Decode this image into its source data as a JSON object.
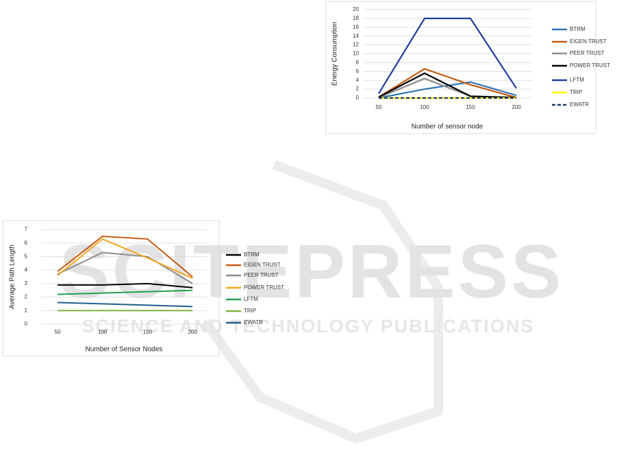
{
  "watermark": {
    "title": "SCITEPRESS",
    "subtitle": "SCIENCE AND TECHNOLOGY PUBLICATIONS"
  },
  "chart_data": [
    {
      "type": "line",
      "x_label": "Number of sensor node",
      "y_label": "Energy Consumption",
      "categories": [
        "50",
        "100",
        "150",
        "200"
      ],
      "ylim": [
        0,
        20
      ],
      "yticks": [
        0,
        2,
        4,
        6,
        8,
        10,
        12,
        14,
        16,
        18,
        20
      ],
      "grid": true,
      "legend": "right",
      "series": [
        {
          "name": "BTRM",
          "color": "#2e75b6",
          "values": [
            0,
            2,
            3.6,
            0.6
          ]
        },
        {
          "name": "EIGEN TRUST",
          "color": "#c55a11",
          "values": [
            0.2,
            6.6,
            3,
            0.1
          ]
        },
        {
          "name": "PEER TRUST",
          "color": "#8c8c8c",
          "values": [
            0.1,
            4.4,
            0.4,
            0.1
          ]
        },
        {
          "name": "POWER TRUST",
          "color": "#000000",
          "values": [
            0.2,
            5.6,
            0.4,
            0.1
          ]
        },
        {
          "name": "LFTM",
          "color": "#1f3d99",
          "values": [
            1,
            18,
            18,
            2.2
          ]
        },
        {
          "name": "TRIP",
          "color": "#ffff00",
          "values": [
            0,
            0,
            0,
            0
          ]
        },
        {
          "name": "EWATR",
          "color": "#1f3864",
          "style": "dashed",
          "values": [
            0,
            0,
            0,
            0
          ]
        }
      ]
    },
    {
      "type": "line",
      "x_label": "Number of Sensor Nodes",
      "y_label": "Average Path Length",
      "categories": [
        "50",
        "100",
        "150",
        "200"
      ],
      "ylim": [
        0,
        7
      ],
      "yticks": [
        0,
        1,
        2,
        3,
        4,
        5,
        6,
        7
      ],
      "grid": true,
      "legend": "right",
      "series": [
        {
          "name": "BTRM",
          "color": "#000000",
          "values": [
            2.9,
            2.9,
            3.0,
            2.7
          ]
        },
        {
          "name": "EIGEN TRUST",
          "color": "#c55a11",
          "values": [
            3.9,
            6.5,
            6.3,
            3.5
          ]
        },
        {
          "name": "PEER TRUST",
          "color": "#8c8c8c",
          "values": [
            3.7,
            5.3,
            5.0,
            3.0
          ]
        },
        {
          "name": "POWER TRUST",
          "color": "#f4a81d",
          "values": [
            3.6,
            6.3,
            4.9,
            3.4
          ]
        },
        {
          "name": "LFTM",
          "color": "#1fa14a",
          "values": [
            2.2,
            2.3,
            2.4,
            2.5
          ]
        },
        {
          "name": "TRIP",
          "color": "#7fb13e",
          "values": [
            1,
            1,
            1,
            1
          ]
        },
        {
          "name": "EWATR",
          "color": "#1f5f8b",
          "values": [
            1.6,
            1.5,
            1.4,
            1.3
          ]
        }
      ]
    }
  ]
}
